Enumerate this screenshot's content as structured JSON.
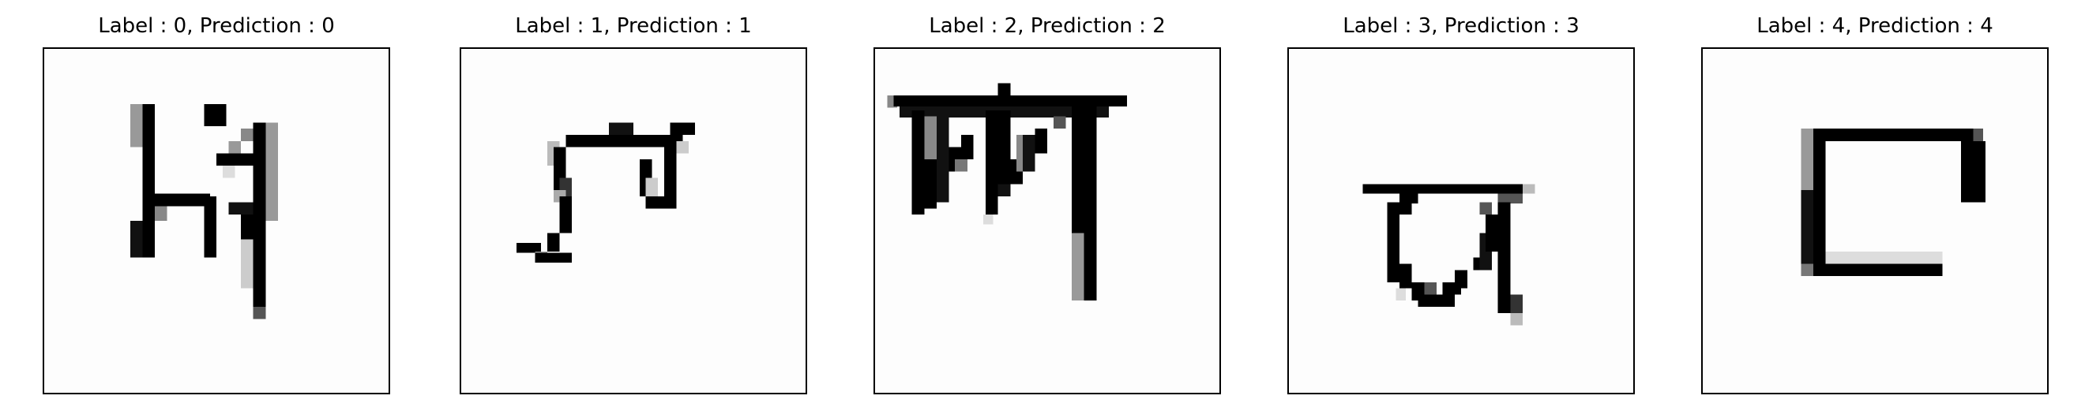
{
  "figure": {
    "panels": [
      {
        "title": "Label : 0, Prediction : 0",
        "label": 0,
        "prediction": 0,
        "glyph": "character-0-glyph"
      },
      {
        "title": "Label : 1, Prediction : 1",
        "label": 1,
        "prediction": 1,
        "glyph": "character-1-glyph"
      },
      {
        "title": "Label : 2, Prediction : 2",
        "label": 2,
        "prediction": 2,
        "glyph": "character-2-glyph"
      },
      {
        "title": "Label : 3, Prediction : 3",
        "label": 3,
        "prediction": 3,
        "glyph": "character-3-glyph"
      },
      {
        "title": "Label : 4, Prediction : 4",
        "label": 4,
        "prediction": 4,
        "glyph": "character-4-glyph"
      }
    ]
  }
}
